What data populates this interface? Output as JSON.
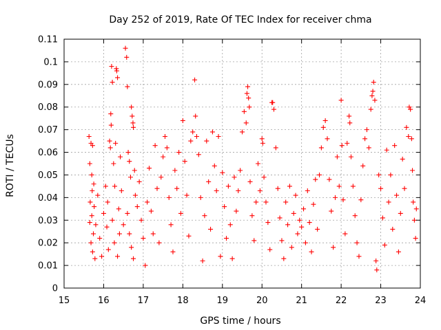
{
  "chart_data": {
    "type": "scatter",
    "title": "Day 252 of 2019, Rate Of TEC Index for receiver chma",
    "xlabel": "GPS time / hours",
    "ylabel": "ROTI / TECUs",
    "xlim": [
      15,
      24
    ],
    "ylim": [
      0,
      0.11
    ],
    "xticks": [
      15,
      16,
      17,
      18,
      19,
      20,
      21,
      22,
      23,
      24
    ],
    "xtick_labels": [
      "15",
      "16",
      "17",
      "18",
      "19",
      "20",
      "21",
      "22",
      "23",
      "24"
    ],
    "yticks": [
      0,
      0.01,
      0.02,
      0.03,
      0.04,
      0.05,
      0.06,
      0.07,
      0.08,
      0.09,
      0.1,
      0.11
    ],
    "ytick_labels": [
      "0",
      "0.01",
      "0.02",
      "0.03",
      "0.04",
      "0.05",
      "0.06",
      "0.07",
      "0.08",
      "0.09",
      "0.1",
      "0.11"
    ],
    "grid": true,
    "marker": "+",
    "marker_color": "#ff0000",
    "series": [
      {
        "name": "ROTI",
        "points": [
          [
            15.63,
            0.067
          ],
          [
            15.68,
            0.064
          ],
          [
            15.72,
            0.063
          ],
          [
            15.65,
            0.055
          ],
          [
            15.7,
            0.05
          ],
          [
            15.75,
            0.046
          ],
          [
            15.66,
            0.038
          ],
          [
            15.7,
            0.032
          ],
          [
            15.74,
            0.024
          ],
          [
            15.68,
            0.02
          ],
          [
            15.72,
            0.016
          ],
          [
            15.78,
            0.013
          ],
          [
            15.65,
            0.029
          ],
          [
            15.71,
            0.043
          ],
          [
            15.76,
            0.036
          ],
          [
            15.8,
            0.028
          ],
          [
            15.85,
            0.041
          ],
          [
            15.9,
            0.022
          ],
          [
            15.95,
            0.014
          ],
          [
            16.0,
            0.033
          ],
          [
            16.05,
            0.045
          ],
          [
            16.08,
            0.027
          ],
          [
            16.12,
            0.017
          ],
          [
            16.1,
            0.038
          ],
          [
            16.15,
            0.065
          ],
          [
            16.17,
            0.062
          ],
          [
            16.18,
            0.077
          ],
          [
            16.19,
            0.072
          ],
          [
            16.2,
            0.098
          ],
          [
            16.22,
            0.091
          ],
          [
            16.25,
            0.055
          ],
          [
            16.28,
            0.045
          ],
          [
            16.3,
            0.064
          ],
          [
            16.32,
            0.097
          ],
          [
            16.33,
            0.096
          ],
          [
            16.35,
            0.093
          ],
          [
            16.38,
            0.035
          ],
          [
            16.4,
            0.024
          ],
          [
            16.42,
            0.058
          ],
          [
            16.45,
            0.043
          ],
          [
            16.22,
            0.03
          ],
          [
            16.27,
            0.02
          ],
          [
            16.35,
            0.014
          ],
          [
            16.55,
            0.106
          ],
          [
            16.58,
            0.102
          ],
          [
            16.6,
            0.089
          ],
          [
            16.62,
            0.06
          ],
          [
            16.65,
            0.056
          ],
          [
            16.68,
            0.049
          ],
          [
            16.7,
            0.08
          ],
          [
            16.72,
            0.076
          ],
          [
            16.74,
            0.073
          ],
          [
            16.75,
            0.071
          ],
          [
            16.78,
            0.052
          ],
          [
            16.8,
            0.041
          ],
          [
            16.6,
            0.033
          ],
          [
            16.65,
            0.024
          ],
          [
            16.7,
            0.018
          ],
          [
            16.75,
            0.013
          ],
          [
            16.5,
            0.028
          ],
          [
            16.85,
            0.036
          ],
          [
            16.9,
            0.047
          ],
          [
            16.95,
            0.03
          ],
          [
            17.0,
            0.022
          ],
          [
            17.05,
            0.01
          ],
          [
            17.1,
            0.038
          ],
          [
            17.15,
            0.053
          ],
          [
            17.2,
            0.034
          ],
          [
            17.25,
            0.024
          ],
          [
            17.3,
            0.063
          ],
          [
            17.35,
            0.044
          ],
          [
            17.4,
            0.02
          ],
          [
            17.45,
            0.049
          ],
          [
            17.5,
            0.058
          ],
          [
            17.55,
            0.067
          ],
          [
            17.6,
            0.062
          ],
          [
            17.65,
            0.04
          ],
          [
            17.7,
            0.028
          ],
          [
            17.75,
            0.016
          ],
          [
            17.8,
            0.052
          ],
          [
            17.85,
            0.044
          ],
          [
            17.9,
            0.06
          ],
          [
            17.95,
            0.033
          ],
          [
            18.0,
            0.074
          ],
          [
            18.05,
            0.056
          ],
          [
            18.1,
            0.041
          ],
          [
            18.15,
            0.023
          ],
          [
            18.2,
            0.065
          ],
          [
            18.25,
            0.069
          ],
          [
            18.3,
            0.092
          ],
          [
            18.32,
            0.076
          ],
          [
            18.35,
            0.067
          ],
          [
            18.4,
            0.059
          ],
          [
            18.45,
            0.04
          ],
          [
            18.5,
            0.012
          ],
          [
            18.55,
            0.032
          ],
          [
            18.6,
            0.065
          ],
          [
            18.65,
            0.047
          ],
          [
            18.7,
            0.026
          ],
          [
            18.75,
            0.069
          ],
          [
            18.8,
            0.054
          ],
          [
            18.85,
            0.043
          ],
          [
            18.9,
            0.067
          ],
          [
            18.95,
            0.014
          ],
          [
            19.0,
            0.051
          ],
          [
            19.05,
            0.036
          ],
          [
            19.1,
            0.022
          ],
          [
            19.15,
            0.045
          ],
          [
            19.2,
            0.028
          ],
          [
            19.25,
            0.013
          ],
          [
            19.3,
            0.049
          ],
          [
            19.35,
            0.034
          ],
          [
            19.4,
            0.043
          ],
          [
            19.45,
            0.052
          ],
          [
            19.5,
            0.069
          ],
          [
            19.55,
            0.078
          ],
          [
            19.6,
            0.073
          ],
          [
            19.62,
            0.086
          ],
          [
            19.64,
            0.089
          ],
          [
            19.66,
            0.084
          ],
          [
            19.68,
            0.08
          ],
          [
            19.7,
            0.047
          ],
          [
            19.75,
            0.032
          ],
          [
            19.8,
            0.021
          ],
          [
            19.85,
            0.038
          ],
          [
            19.9,
            0.055
          ],
          [
            19.95,
            0.043
          ],
          [
            20.0,
            0.066
          ],
          [
            20.02,
            0.064
          ],
          [
            20.05,
            0.049
          ],
          [
            20.1,
            0.038
          ],
          [
            20.15,
            0.029
          ],
          [
            20.2,
            0.017
          ],
          [
            20.25,
            0.082
          ],
          [
            20.27,
            0.082
          ],
          [
            20.3,
            0.079
          ],
          [
            20.35,
            0.062
          ],
          [
            20.4,
            0.044
          ],
          [
            20.45,
            0.031
          ],
          [
            20.5,
            0.021
          ],
          [
            20.55,
            0.013
          ],
          [
            20.6,
            0.038
          ],
          [
            20.65,
            0.028
          ],
          [
            20.7,
            0.045
          ],
          [
            20.75,
            0.018
          ],
          [
            20.8,
            0.033
          ],
          [
            20.85,
            0.041
          ],
          [
            20.9,
            0.024
          ],
          [
            20.95,
            0.03
          ],
          [
            21.0,
            0.027
          ],
          [
            21.05,
            0.035
          ],
          [
            21.1,
            0.02
          ],
          [
            21.15,
            0.043
          ],
          [
            21.2,
            0.029
          ],
          [
            21.25,
            0.016
          ],
          [
            21.3,
            0.037
          ],
          [
            21.35,
            0.048
          ],
          [
            21.4,
            0.026
          ],
          [
            21.45,
            0.05
          ],
          [
            21.5,
            0.062
          ],
          [
            21.55,
            0.071
          ],
          [
            21.6,
            0.074
          ],
          [
            21.65,
            0.066
          ],
          [
            21.7,
            0.048
          ],
          [
            21.75,
            0.034
          ],
          [
            21.8,
            0.018
          ],
          [
            21.85,
            0.04
          ],
          [
            21.9,
            0.058
          ],
          [
            21.95,
            0.045
          ],
          [
            22.0,
            0.083
          ],
          [
            22.02,
            0.063
          ],
          [
            22.05,
            0.039
          ],
          [
            22.1,
            0.024
          ],
          [
            22.15,
            0.064
          ],
          [
            22.2,
            0.076
          ],
          [
            22.22,
            0.073
          ],
          [
            22.25,
            0.058
          ],
          [
            22.3,
            0.045
          ],
          [
            22.35,
            0.032
          ],
          [
            22.4,
            0.02
          ],
          [
            22.45,
            0.014
          ],
          [
            22.5,
            0.039
          ],
          [
            22.55,
            0.054
          ],
          [
            22.6,
            0.066
          ],
          [
            22.65,
            0.07
          ],
          [
            22.7,
            0.062
          ],
          [
            22.75,
            0.079
          ],
          [
            22.78,
            0.085
          ],
          [
            22.8,
            0.087
          ],
          [
            22.82,
            0.091
          ],
          [
            22.85,
            0.083
          ],
          [
            22.88,
            0.012
          ],
          [
            22.9,
            0.008
          ],
          [
            22.95,
            0.05
          ],
          [
            23.0,
            0.044
          ],
          [
            23.05,
            0.031
          ],
          [
            23.1,
            0.019
          ],
          [
            23.15,
            0.061
          ],
          [
            23.2,
            0.038
          ],
          [
            23.25,
            0.05
          ],
          [
            23.3,
            0.026
          ],
          [
            23.35,
            0.063
          ],
          [
            23.4,
            0.041
          ],
          [
            23.45,
            0.016
          ],
          [
            23.5,
            0.033
          ],
          [
            23.55,
            0.057
          ],
          [
            23.6,
            0.044
          ],
          [
            23.65,
            0.071
          ],
          [
            23.7,
            0.067
          ],
          [
            23.72,
            0.08
          ],
          [
            23.75,
            0.079
          ],
          [
            23.78,
            0.066
          ],
          [
            23.8,
            0.052
          ],
          [
            23.82,
            0.038
          ],
          [
            23.85,
            0.03
          ],
          [
            23.88,
            0.022
          ],
          [
            23.9,
            0.035
          ]
        ]
      }
    ]
  }
}
